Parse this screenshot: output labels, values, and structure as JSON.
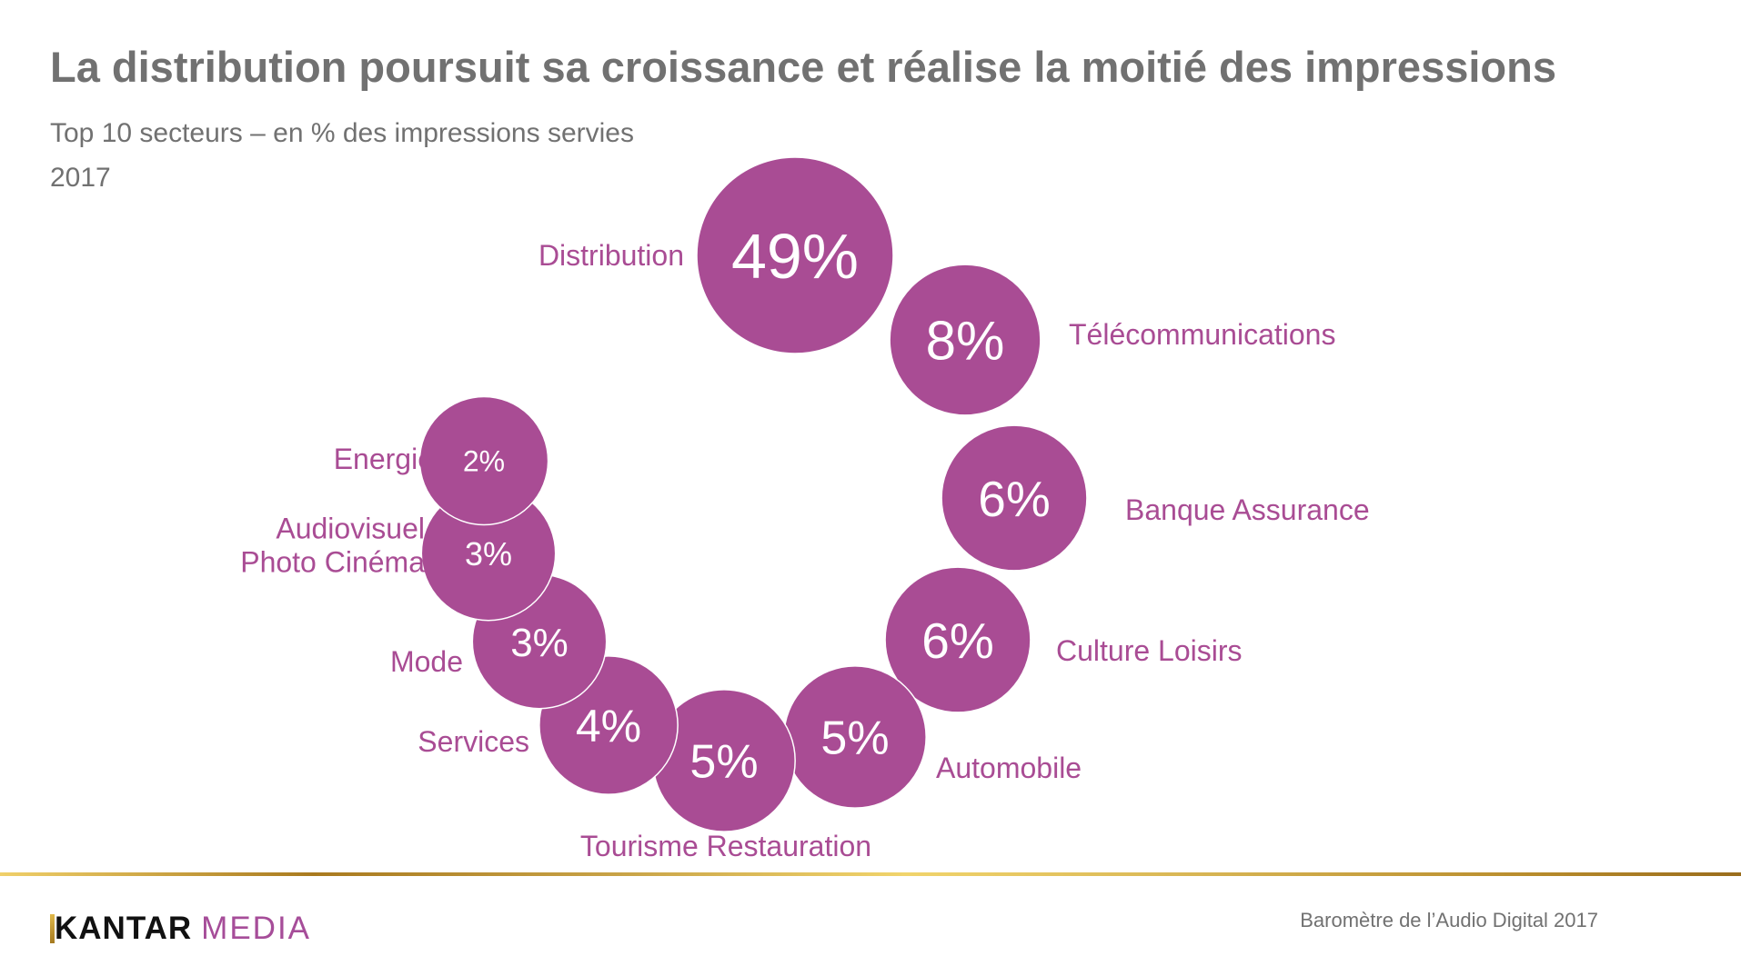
{
  "header": {
    "title": "La distribution poursuit sa croissance et réalise la moitié des impressions",
    "subtitle": "Top 10 secteurs – en % des impressions servies",
    "year": "2017"
  },
  "colors": {
    "bubble": "#a94c94",
    "label": "#a94c94",
    "bubble_text": "#ffffff",
    "title": "#717171",
    "gold_line": "#c9a448"
  },
  "chart_data": {
    "type": "bubble",
    "title": "Top 10 secteurs – en % des impressions servies",
    "subtitle": "2017",
    "unit": "%",
    "categories": [
      "Distribution",
      "Télécommunications",
      "Banque Assurance",
      "Culture Loisirs",
      "Automobile",
      "Tourisme Restauration",
      "Services",
      "Mode",
      "Audiovisuel Photo Cinéma",
      "Energie"
    ],
    "values": [
      49,
      8,
      6,
      6,
      5,
      5,
      4,
      3,
      3,
      2
    ],
    "value_labels": [
      "49%",
      "8%",
      "6%",
      "6%",
      "5%",
      "5%",
      "4%",
      "3%",
      "3%",
      "2%"
    ],
    "label_lines": [
      [
        "Distribution"
      ],
      [
        "Télécommunications"
      ],
      [
        "Banque Assurance"
      ],
      [
        "Culture Loisirs"
      ],
      [
        "Automobile"
      ],
      [
        "Tourisme Restauration"
      ],
      [
        "Services"
      ],
      [
        "Mode"
      ],
      [
        "Audiovisuel",
        "Photo Cinéma"
      ],
      [
        "Energie"
      ]
    ],
    "arrangement": "clockwise arc starting top",
    "legend": "none",
    "grid": false
  },
  "footer": {
    "logo_primary": "KANTAR",
    "logo_secondary": "MEDIA",
    "source": "Baromètre de l’Audio Digital 2017"
  }
}
